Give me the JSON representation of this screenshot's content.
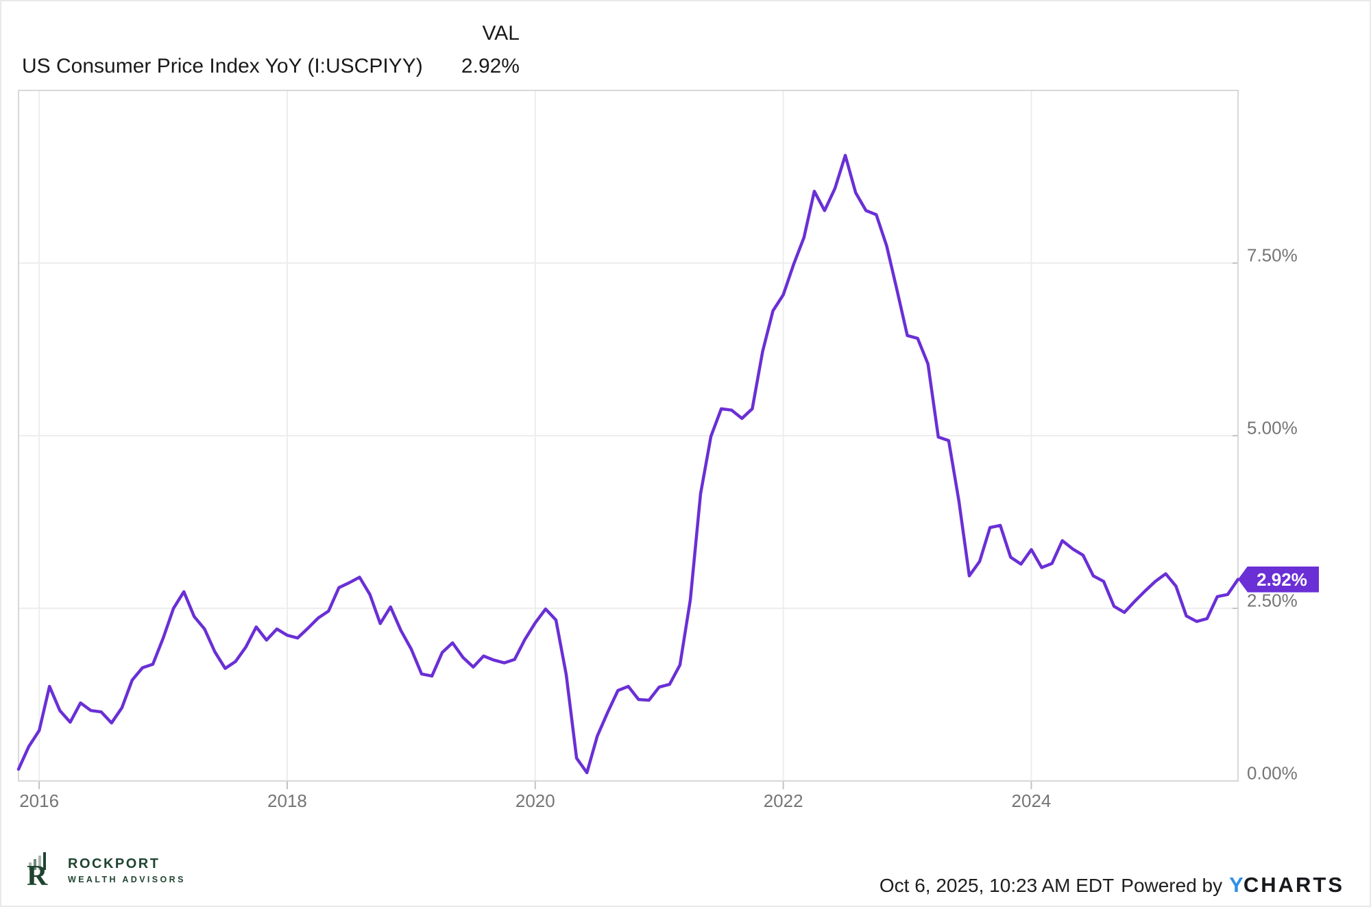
{
  "header": {
    "title": "US Consumer Price Index YoY (I:USCPIYY)",
    "value_column_label": "VAL",
    "value": "2.92%"
  },
  "chart_data": {
    "type": "line",
    "series_name": "US Consumer Price Index YoY",
    "unit": "percent",
    "frequency": "monthly",
    "x_start": "2015-10",
    "x_end": "2025-08",
    "ylim": [
      0,
      10
    ],
    "grid": true,
    "y_ticks": [
      {
        "value": 0.0,
        "label": "0.00%"
      },
      {
        "value": 2.5,
        "label": "2.50%"
      },
      {
        "value": 5.0,
        "label": "5.00%"
      },
      {
        "value": 7.5,
        "label": "7.50%"
      }
    ],
    "x_ticks": [
      {
        "index": 2,
        "label": "2016"
      },
      {
        "index": 26,
        "label": "2018"
      },
      {
        "index": 50,
        "label": "2020"
      },
      {
        "index": 74,
        "label": "2022"
      },
      {
        "index": 98,
        "label": "2024"
      }
    ],
    "last_value_label": "2.92%",
    "values": [
      0.17,
      0.5,
      0.73,
      1.37,
      1.02,
      0.85,
      1.13,
      1.02,
      1.0,
      0.84,
      1.06,
      1.46,
      1.64,
      1.69,
      2.07,
      2.5,
      2.74,
      2.38,
      2.2,
      1.87,
      1.63,
      1.73,
      1.94,
      2.23,
      2.04,
      2.2,
      2.11,
      2.07,
      2.21,
      2.36,
      2.46,
      2.8,
      2.87,
      2.95,
      2.7,
      2.28,
      2.52,
      2.18,
      1.91,
      1.55,
      1.52,
      1.86,
      2.0,
      1.79,
      1.65,
      1.81,
      1.75,
      1.71,
      1.76,
      2.05,
      2.29,
      2.49,
      2.33,
      1.54,
      0.33,
      0.12,
      0.65,
      0.99,
      1.31,
      1.37,
      1.18,
      1.17,
      1.36,
      1.4,
      1.68,
      2.62,
      4.16,
      4.99,
      5.39,
      5.37,
      5.25,
      5.39,
      6.22,
      6.81,
      7.04,
      7.48,
      7.87,
      8.54,
      8.26,
      8.58,
      9.06,
      8.52,
      8.26,
      8.2,
      7.75,
      7.11,
      6.45,
      6.41,
      6.04,
      4.98,
      4.93,
      4.05,
      2.97,
      3.18,
      3.67,
      3.7,
      3.24,
      3.14,
      3.35,
      3.09,
      3.15,
      3.48,
      3.36,
      3.27,
      2.97,
      2.89,
      2.53,
      2.44,
      2.6,
      2.75,
      2.89,
      3.0,
      2.82,
      2.39,
      2.31,
      2.35,
      2.67,
      2.7,
      2.92
    ]
  },
  "footer": {
    "logo": {
      "monogram": "R",
      "line1": "ROCKPORT",
      "line2": "WEALTH ADVISORS"
    },
    "timestamp": "Oct 6, 2025, 10:23 AM EDT",
    "powered_by": "Powered by",
    "ycharts_y": "Y",
    "ycharts_rest": "CHARTS"
  },
  "colors": {
    "accent": "#6A2FD5",
    "grid_line": "#EDEDED",
    "frame_line": "#D8D8D8",
    "axis_text": "#757575",
    "title_text": "#1A1A1A",
    "rockport_green": "#1F4430",
    "ycharts_blue": "#2E8FE8"
  }
}
